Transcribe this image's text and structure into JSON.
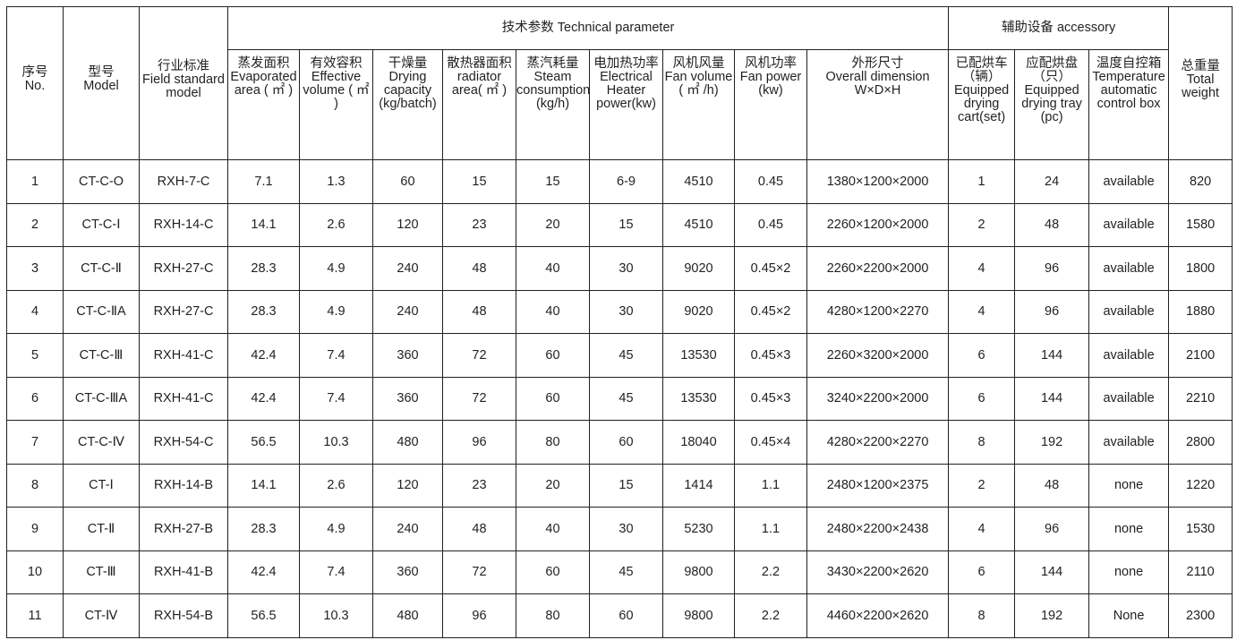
{
  "header": {
    "no": {
      "zh": "序号",
      "en": "No."
    },
    "model": {
      "zh": "型号",
      "en": "Model"
    },
    "field": {
      "zh": "行业标准",
      "en": "Field standard model"
    },
    "technical_group": "技术参数 Technical parameter",
    "accessory_group": "辅助设备 accessory",
    "weight": {
      "zh": "总重量",
      "en": "Total weight"
    },
    "columns": [
      {
        "zh": "蒸发面积",
        "en": "Evaporated area ( ㎡ )"
      },
      {
        "zh": "有效容积",
        "en": "Effective volume ( ㎡ )"
      },
      {
        "zh": "干燥量",
        "en": "Drying capacity (kg/batch)"
      },
      {
        "zh": "散热器面积",
        "en": "radiator area( ㎡ )"
      },
      {
        "zh": "蒸汽耗量",
        "en": "Steam consumption (kg/h)"
      },
      {
        "zh": "电加热功率",
        "en": "Electrical Heater power(kw)"
      },
      {
        "zh": "风机风量",
        "en": "Fan volume ( ㎡ /h)"
      },
      {
        "zh": "风机功率",
        "en": "Fan power (kw)"
      },
      {
        "zh": "外形尺寸",
        "en": "Overall dimension W×D×H"
      },
      {
        "zh": "已配烘车（辆）",
        "en": "Equipped drying cart(set)"
      },
      {
        "zh": "应配烘盘（只）",
        "en": "Equipped drying tray (pc)"
      },
      {
        "zh": "温度自控箱",
        "en": "Temperature automatic control box"
      }
    ]
  },
  "rows": [
    [
      "1",
      "CT-C-O",
      "RXH-7-C",
      "7.1",
      "1.3",
      "60",
      "15",
      "15",
      "6-9",
      "4510",
      "0.45",
      "1380×1200×2000",
      "1",
      "24",
      "available",
      "820"
    ],
    [
      "2",
      "CT-C-Ⅰ",
      "RXH-14-C",
      "14.1",
      "2.6",
      "120",
      "23",
      "20",
      "15",
      "4510",
      "0.45",
      "2260×1200×2000",
      "2",
      "48",
      "available",
      "1580"
    ],
    [
      "3",
      "CT-C-Ⅱ",
      "RXH-27-C",
      "28.3",
      "4.9",
      "240",
      "48",
      "40",
      "30",
      "9020",
      "0.45×2",
      "2260×2200×2000",
      "4",
      "96",
      "available",
      "1800"
    ],
    [
      "4",
      "CT-C-ⅡA",
      "RXH-27-C",
      "28.3",
      "4.9",
      "240",
      "48",
      "40",
      "30",
      "9020",
      "0.45×2",
      "4280×1200×2270",
      "4",
      "96",
      "available",
      "1880"
    ],
    [
      "5",
      "CT-C-Ⅲ",
      "RXH-41-C",
      "42.4",
      "7.4",
      "360",
      "72",
      "60",
      "45",
      "13530",
      "0.45×3",
      "2260×3200×2000",
      "6",
      "144",
      "available",
      "2100"
    ],
    [
      "6",
      "CT-C-ⅢA",
      "RXH-41-C",
      "42.4",
      "7.4",
      "360",
      "72",
      "60",
      "45",
      "13530",
      "0.45×3",
      "3240×2200×2000",
      "6",
      "144",
      "available",
      "2210"
    ],
    [
      "7",
      "CT-C-Ⅳ",
      "RXH-54-C",
      "56.5",
      "10.3",
      "480",
      "96",
      "80",
      "60",
      "18040",
      "0.45×4",
      "4280×2200×2270",
      "8",
      "192",
      "available",
      "2800"
    ],
    [
      "8",
      "CT-Ⅰ",
      "RXH-14-B",
      "14.1",
      "2.6",
      "120",
      "23",
      "20",
      "15",
      "1414",
      "1.1",
      "2480×1200×2375",
      "2",
      "48",
      "none",
      "1220"
    ],
    [
      "9",
      "CT-Ⅱ",
      "RXH-27-B",
      "28.3",
      "4.9",
      "240",
      "48",
      "40",
      "30",
      "5230",
      "1.1",
      "2480×2200×2438",
      "4",
      "96",
      "none",
      "1530"
    ],
    [
      "10",
      "CT-Ⅲ",
      "RXH-41-B",
      "42.4",
      "7.4",
      "360",
      "72",
      "60",
      "45",
      "9800",
      "2.2",
      "3430×2200×2620",
      "6",
      "144",
      "none",
      "2110"
    ],
    [
      "11",
      "CT-Ⅳ",
      "RXH-54-B",
      "56.5",
      "10.3",
      "480",
      "96",
      "80",
      "60",
      "9800",
      "2.2",
      "4460×2200×2620",
      "8",
      "192",
      "None",
      "2300"
    ]
  ]
}
